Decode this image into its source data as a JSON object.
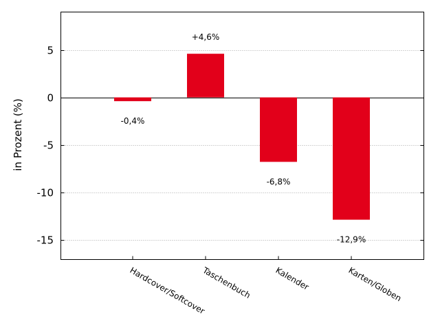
{
  "chart_data": {
    "type": "bar",
    "title": "",
    "xlabel": "",
    "ylabel": "in Prozent (%)",
    "categories": [
      "Hardcover/Softcover",
      "Taschenbuch",
      "Kalender",
      "Karten/Globen"
    ],
    "values": [
      -0.4,
      4.6,
      -6.8,
      -12.9
    ],
    "data_labels": [
      "-0,4%",
      "+4,6%",
      "-6,8%",
      "-12,9%"
    ],
    "ylim": [
      -17.1,
      9
    ],
    "yticks": [
      5,
      0,
      -5,
      -10,
      -15
    ],
    "ytick_labels": [
      "5",
      "0",
      "-5",
      "-10",
      "-15"
    ],
    "bar_color": "#e2001a",
    "grid": "horizontal dotted",
    "legend": "none"
  }
}
